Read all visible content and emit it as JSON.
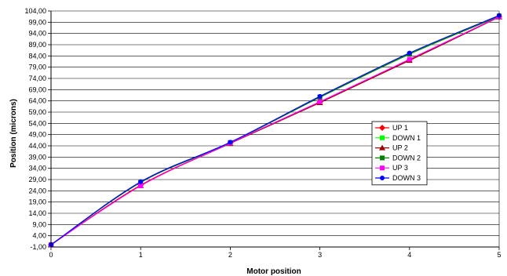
{
  "chart_data": {
    "type": "line",
    "xlabel": "Motor position",
    "ylabel": "Position (microns)",
    "xlim": [
      0,
      5
    ],
    "ylim": [
      -1,
      104
    ],
    "x_ticks": [
      "0",
      "1",
      "2",
      "3",
      "4",
      "5"
    ],
    "y_ticks": [
      "-1,00",
      "4,00",
      "9,00",
      "14,00",
      "19,00",
      "24,00",
      "29,00",
      "34,00",
      "39,00",
      "44,00",
      "49,00",
      "54,00",
      "59,00",
      "64,00",
      "69,00",
      "74,00",
      "79,00",
      "84,00",
      "89,00",
      "94,00",
      "99,00",
      "104,00"
    ],
    "grid": "horizontal",
    "legend": "right",
    "x": [
      0,
      1,
      2,
      3,
      4,
      5
    ],
    "series": [
      {
        "name": "UP 1",
        "color": "#ff0000",
        "marker": "diamond",
        "values": [
          0,
          26.5,
          45.2,
          63.5,
          82.3,
          101.5
        ]
      },
      {
        "name": "DOWN 1",
        "color": "#00ff00",
        "marker": "square",
        "values": [
          0,
          27.8,
          45.5,
          65.8,
          85.0,
          101.8
        ]
      },
      {
        "name": "UP 2",
        "color": "#990000",
        "marker": "triangle",
        "values": [
          0,
          26.3,
          45.1,
          63.2,
          82.0,
          101.3
        ]
      },
      {
        "name": "DOWN 2",
        "color": "#008000",
        "marker": "square",
        "values": [
          0,
          27.7,
          45.4,
          65.6,
          84.8,
          101.6
        ]
      },
      {
        "name": "UP 3",
        "color": "#ff00ff",
        "marker": "square",
        "values": [
          0,
          26.2,
          45.3,
          63.6,
          82.5,
          101.4
        ]
      },
      {
        "name": "DOWN 3",
        "color": "#0000ff",
        "marker": "circle",
        "values": [
          0,
          28.0,
          45.6,
          66.0,
          85.3,
          102.0
        ]
      }
    ]
  }
}
